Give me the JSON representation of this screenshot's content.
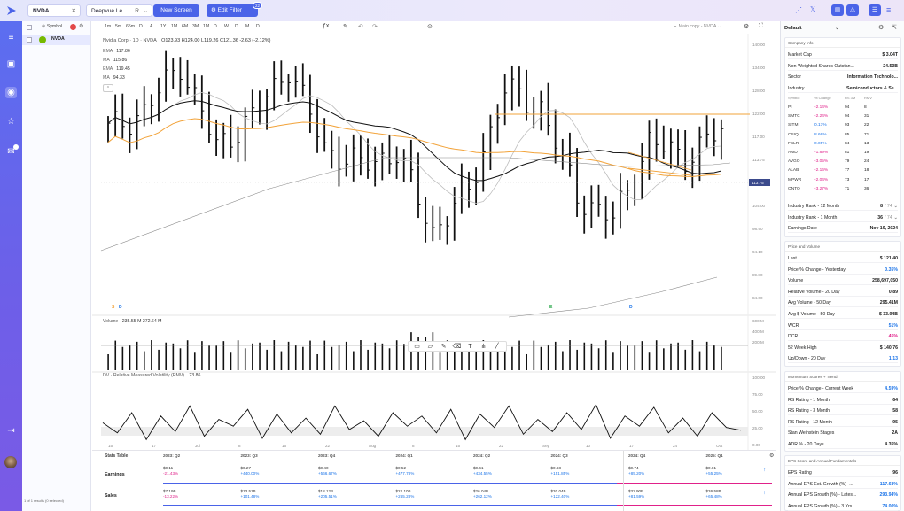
{
  "top": {
    "symbol": "NVDA",
    "watchlist": "Deepvue Le...",
    "watchlist_suffix": "R",
    "new_screen": "New Screen",
    "edit_filter": "Edit Filter",
    "filter_badge": "22"
  },
  "symbols": {
    "column_label": "Symbol",
    "items": [
      {
        "ticker": "NVDA"
      }
    ],
    "footer": "1 of 1 results (0 selected)"
  },
  "chart": {
    "timeframes": [
      "1m",
      "5m",
      "65m",
      "D",
      "A",
      "1Y",
      "1M",
      "6M",
      "3M",
      "1M",
      "D",
      "W",
      "D",
      "M",
      "D"
    ],
    "legend_title": "Nvidia Corp · 1D · NVDA",
    "ohlc": "O123.93  H124.00  L119.26  C121.36  -2.63 (-2.12%)",
    "ma_lines": [
      {
        "label": "EMA",
        "value": "117.86"
      },
      {
        "label": "MA",
        "value": "115.86"
      },
      {
        "label": "EMA",
        "value": "119.45"
      },
      {
        "label": "MA",
        "value": "94.33"
      }
    ],
    "layout_name": "Main copy - NVDA",
    "price_ticks": [
      "140.00",
      "134.00",
      "128.00",
      "122.00",
      "117.00",
      "113.75",
      "109.00",
      "104.00",
      "98.90",
      "94.10",
      "89.80",
      "84.00"
    ],
    "last_price_tag": "113.75",
    "date_ticks": [
      "15",
      "17",
      "Jul",
      "8",
      "16",
      "22",
      "Aug",
      "8",
      "15",
      "22",
      "Sep",
      "10",
      "17",
      "24",
      "Oct"
    ],
    "event_markers": [
      {
        "label": "S",
        "kind": "split"
      },
      {
        "label": "D",
        "kind": "dividend"
      },
      {
        "label": "E",
        "kind": "earnings"
      },
      {
        "label": "D",
        "kind": "dividend"
      }
    ],
    "volume_label": "Volume",
    "volume_values": "235.55 M   272.64 M",
    "volume_ticks": [
      "600 M",
      "400 M",
      "200 M"
    ],
    "rmv_label": "DV · Relative Measured Volatility (RMV)",
    "rmv_value": "23.86",
    "rmv_ticks": [
      "100.00",
      "75.00",
      "50.00",
      "25.00",
      "0.00"
    ]
  },
  "chart_data": {
    "type": "candlestick",
    "title": "Nvidia Corp · 1D · NVDA",
    "y_range": [
      84,
      140
    ],
    "close_approx": [
      {
        "x": "Jun 10",
        "c": 121.8
      },
      {
        "x": "Jun 14",
        "c": 125.5
      },
      {
        "x": "Jun 18",
        "c": 135.6
      },
      {
        "x": "Jun 24",
        "c": 118.1
      },
      {
        "x": "Jul 01",
        "c": 124.3
      },
      {
        "x": "Jul 10",
        "c": 134.9
      },
      {
        "x": "Jul 17",
        "c": 117.9
      },
      {
        "x": "Jul 24",
        "c": 114.2
      },
      {
        "x": "Jul 31",
        "c": 117.0
      },
      {
        "x": "Aug 05",
        "c": 100.5
      },
      {
        "x": "Aug 12",
        "c": 109.0
      },
      {
        "x": "Aug 19",
        "c": 130.0
      },
      {
        "x": "Aug 26",
        "c": 126.5
      },
      {
        "x": "Sep 03",
        "c": 108.0
      },
      {
        "x": "Sep 06",
        "c": 102.8
      },
      {
        "x": "Sep 13",
        "c": 119.1
      },
      {
        "x": "Sep 20",
        "c": 116.0
      },
      {
        "x": "Sep 27",
        "c": 121.4
      }
    ],
    "rmv_approx": [
      35,
      20,
      50,
      10,
      45,
      22,
      60,
      15,
      40,
      30,
      55,
      12,
      48,
      20,
      42,
      18,
      60,
      25,
      38,
      15,
      50,
      30,
      45,
      20,
      55,
      10,
      48,
      28,
      60,
      18,
      40,
      22,
      50,
      25,
      62,
      12,
      45,
      30,
      58,
      20,
      42,
      15,
      50,
      28,
      24
    ]
  },
  "company": {
    "tab_label": "Default",
    "section_title": "Company Info",
    "rows": [
      {
        "k": "Market Cap",
        "v": "$ 3.04T"
      },
      {
        "k": "Non-Weighted Shares Outstan...",
        "v": "24.53B"
      },
      {
        "k": "Sector",
        "v": "Information Technolo..."
      },
      {
        "k": "Industry",
        "v": "Semiconductors & Se..."
      }
    ],
    "peers_header": {
      "symbol": "Symbol",
      "change": "% Change",
      "rs": "RS 3M",
      "rmv": "RMV"
    },
    "peers": [
      {
        "s": "PI",
        "c": "-2.14%",
        "rs": "94",
        "r": "8",
        "neg": true
      },
      {
        "s": "SMTC",
        "c": "-2.24%",
        "rs": "94",
        "r": "31",
        "neg": true
      },
      {
        "s": "SITM",
        "c": "0.17%",
        "rs": "93",
        "r": "22",
        "neg": false
      },
      {
        "s": "CSIQ",
        "c": "8.66%",
        "rs": "85",
        "r": "71",
        "neg": false
      },
      {
        "s": "FSLR",
        "c": "0.05%",
        "rs": "84",
        "r": "13",
        "neg": false
      },
      {
        "s": "AMD",
        "c": "-1.89%",
        "rs": "81",
        "r": "19",
        "neg": true
      },
      {
        "s": "AVGO",
        "c": "-3.05%",
        "rs": "79",
        "r": "24",
        "neg": true
      },
      {
        "s": "ALAB",
        "c": "-2.16%",
        "rs": "77",
        "r": "18",
        "neg": true
      },
      {
        "s": "MPWR",
        "c": "-2.04%",
        "rs": "73",
        "r": "17",
        "neg": true
      },
      {
        "s": "ONTO",
        "c": "-3.27%",
        "rs": "71",
        "r": "36",
        "neg": true
      }
    ],
    "bottom_rows": [
      {
        "k": "Industry Rank - 12 Month",
        "v": "8",
        "sub": "/ 74"
      },
      {
        "k": "Industry Rank - 1 Month",
        "v": "36",
        "sub": "/ 74"
      },
      {
        "k": "Earnings Date",
        "v": "Nov 19, 2024"
      }
    ]
  },
  "price_volume": {
    "section_title": "Price and Volume",
    "rows": [
      {
        "k": "Last",
        "v": "$ 121.40",
        "cls": ""
      },
      {
        "k": "Price % Change - Yesterday",
        "v": "0.35%",
        "cls": "pos"
      },
      {
        "k": "Volume",
        "v": "258,697,050",
        "cls": ""
      },
      {
        "k": "Relative Volume - 20 Day",
        "v": "0.89",
        "cls": ""
      },
      {
        "k": "Avg Volume - 50 Day",
        "v": "295.41M",
        "cls": ""
      },
      {
        "k": "Avg $ Volume - 50 Day",
        "v": "$ 33.94B",
        "cls": ""
      },
      {
        "k": "WCR",
        "v": "51%",
        "cls": "pos"
      },
      {
        "k": "DCR",
        "v": "45%",
        "cls": "neg"
      },
      {
        "k": "52 Week High",
        "v": "$ 140.76",
        "cls": ""
      },
      {
        "k": "Up/Down - 20 Day",
        "v": "1.13",
        "cls": "pos"
      }
    ]
  },
  "momentum": {
    "section_title": "Momentum Scores + Trend",
    "rows": [
      {
        "k": "Price % Change - Current Week",
        "v": "4.59%",
        "cls": "pos"
      },
      {
        "k": "RS Rating - 1 Month",
        "v": "64",
        "cls": ""
      },
      {
        "k": "RS Rating - 3 Month",
        "v": "58",
        "cls": ""
      },
      {
        "k": "RS Rating - 12 Month",
        "v": "95",
        "cls": ""
      },
      {
        "k": "Stan Weinstein Stages",
        "v": "2A",
        "cls": ""
      },
      {
        "k": "ADR % - 20 Days",
        "v": "4.35%",
        "cls": ""
      }
    ]
  },
  "eps": {
    "section_title": "EPS Score and Annual Fundamentals",
    "rows": [
      {
        "k": "EPS Rating",
        "v": "96",
        "cls": ""
      },
      {
        "k": "Annual EPS Est. Growth (%) -...",
        "v": "117.68%",
        "cls": "pos"
      },
      {
        "k": "Annual EPS Growth (%) - Lates...",
        "v": "293.94%",
        "cls": "pos"
      },
      {
        "k": "Annual EPS Growth (%) - 3 Yrs",
        "v": "74.00%",
        "cls": "pos"
      }
    ]
  },
  "stats": {
    "title": "Stats Table",
    "quarters": [
      "2023: Q2",
      "2023: Q3",
      "2023: Q4",
      "2024: Q1",
      "2024: Q2",
      "2024: Q3",
      "2024: Q4",
      "2025: Q1"
    ],
    "earnings_label": "Earnings",
    "earnings": [
      {
        "v": "$0.11",
        "g": "-21.43%",
        "neg": true
      },
      {
        "v": "$0.27",
        "g": "+440.00%",
        "neg": false
      },
      {
        "v": "$0.40",
        "g": "+566.67%",
        "neg": false
      },
      {
        "v": "$0.52",
        "g": "+477.78%",
        "neg": false
      },
      {
        "v": "$0.61",
        "g": "+434.55%",
        "neg": false
      },
      {
        "v": "$0.68",
        "g": "+151.85%",
        "neg": false
      },
      {
        "v": "$0.74",
        "g": "+85.20%",
        "neg": false
      },
      {
        "v": "$0.81",
        "g": "+55.25%",
        "neg": false
      }
    ],
    "sales_label": "Sales",
    "sales": [
      {
        "v": "$7.19B",
        "g": "-13.22%",
        "neg": true
      },
      {
        "v": "$13.51B",
        "g": "+101.48%",
        "neg": false
      },
      {
        "v": "$18.12B",
        "g": "+205.51%",
        "neg": false
      },
      {
        "v": "$22.10B",
        "g": "+265.28%",
        "neg": false
      },
      {
        "v": "$26.04B",
        "g": "+262.12%",
        "neg": false
      },
      {
        "v": "$30.04B",
        "g": "+122.40%",
        "neg": false
      },
      {
        "v": "$32.90B",
        "g": "+81.59%",
        "neg": false
      },
      {
        "v": "$36.58B",
        "g": "+65.48%",
        "neg": false
      }
    ]
  },
  "colors": {
    "accent": "#4a63e8",
    "pos": "#1a73e8",
    "neg": "#e0218a",
    "ma_orange": "#f2a33a"
  },
  "icons": [
    "share-icon",
    "x-icon",
    "layout-icon",
    "alert-icon",
    "list-icon",
    "menu-icon",
    "settings-icon",
    "camera-icon",
    "pencil-icon",
    "undo-icon",
    "redo-icon"
  ]
}
